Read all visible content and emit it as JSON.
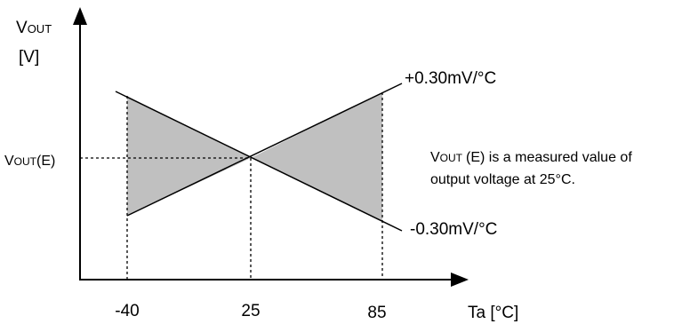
{
  "chart_data": {
    "type": "diagram",
    "y_axis": {
      "label_main": "V",
      "label_sub": "OUT",
      "unit": "[V]"
    },
    "x_axis": {
      "label": "Ta [°C]",
      "ticks": [
        {
          "value": -40,
          "label": "-40"
        },
        {
          "value": 25,
          "label": "25"
        },
        {
          "value": 85,
          "label": "85"
        }
      ]
    },
    "reference": {
      "label_main": "V",
      "label_sub": "OUT",
      "label_suffix": "(E)",
      "temperature": 25
    },
    "lines": [
      {
        "name": "upper",
        "label": "+0.30mV/°C",
        "slope_mV_per_C": 0.3
      },
      {
        "name": "lower",
        "label": "-0.30mV/°C",
        "slope_mV_per_C": -0.3
      }
    ],
    "shaded_ranges": [
      [
        -40,
        25
      ],
      [
        25,
        85
      ]
    ],
    "shade_color": "#c0c0c0",
    "note": {
      "line1_main": "V",
      "line1_sub": "OUT",
      "line1_rest": "(E) is a measured value of",
      "line2": "output voltage at 25°C."
    }
  }
}
